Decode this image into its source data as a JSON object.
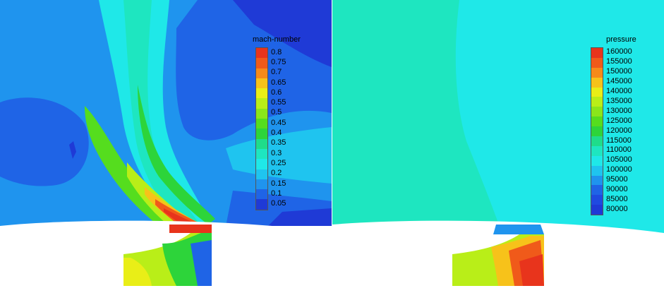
{
  "left_panel": {
    "legend": {
      "title": "mach-number",
      "levels": [
        "0.8",
        "0.75",
        "0.7",
        "0.65",
        "0.6",
        "0.55",
        "0.5",
        "0.45",
        "0.4",
        "0.35",
        "0.3",
        "0.25",
        "0.2",
        "0.15",
        "0.1",
        "0.05"
      ],
      "colors": [
        "#e8341c",
        "#f05a1a",
        "#f68a1a",
        "#f7c21a",
        "#e9ee17",
        "#b9ee18",
        "#8ae61a",
        "#55dd1e",
        "#2dd43a",
        "#1fdc8a",
        "#1ee6c0",
        "#1fe8e8",
        "#1fc4ef",
        "#1f94ee",
        "#1f64e6",
        "#1f3ad6"
      ]
    }
  },
  "right_panel": {
    "legend": {
      "title": "pressure",
      "levels": [
        "160000",
        "155000",
        "150000",
        "145000",
        "140000",
        "135000",
        "130000",
        "125000",
        "120000",
        "115000",
        "110000",
        "105000",
        "100000",
        "95000",
        "90000",
        "85000",
        "80000"
      ],
      "colors": [
        "#e8341c",
        "#f05a1a",
        "#f68a1a",
        "#f7c21a",
        "#e9ee17",
        "#b9ee18",
        "#8ae61a",
        "#55dd1e",
        "#2dd43a",
        "#1fdc8a",
        "#1ee6c0",
        "#1fe8e8",
        "#1fc4ef",
        "#1f94ee",
        "#1f64e6",
        "#1f4ae0",
        "#1f3ad6"
      ]
    }
  }
}
